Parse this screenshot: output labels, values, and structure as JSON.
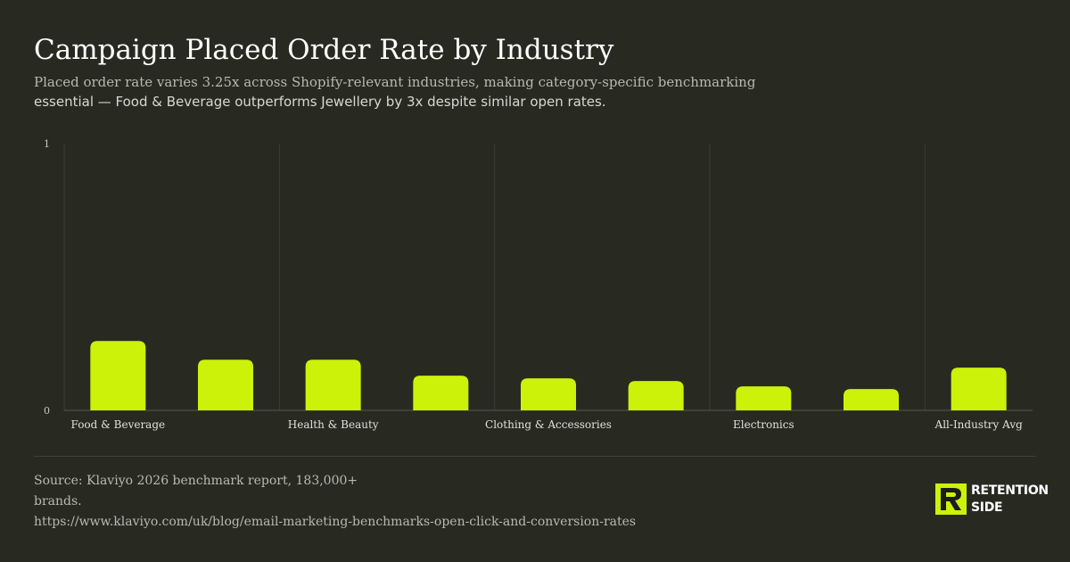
{
  "header": {
    "title": "Campaign Placed Order Rate by Industry",
    "subtitle_line1": "Placed order rate varies 3.25x across Shopify-relevant industries, making category-specific benchmarking",
    "subtitle_line2": "essential — Food & Beverage outperforms Jewellery by 3x despite similar open rates."
  },
  "chart_data": {
    "type": "bar",
    "categories": [
      "Food & Beverage",
      "",
      "Health & Beauty",
      "",
      "Clothing & Accessories",
      "",
      "Electronics",
      "",
      "All-Industry Avg"
    ],
    "values": [
      0.26,
      0.19,
      0.19,
      0.13,
      0.12,
      0.11,
      0.09,
      0.08,
      0.16
    ],
    "ylim": [
      0,
      1
    ],
    "yticks": [
      "0",
      "1"
    ],
    "grid": "vertical lines at alternate categories",
    "bar_color": "#ccf20a"
  },
  "footer": {
    "source_line1": "Source: Klaviyo 2026 benchmark report, 183,000+",
    "source_line2": "brands.",
    "source_line3": "https://www.klaviyo.com/uk/blog/email-marketing-benchmarks-open-click-and-conversion-rates"
  },
  "brand": {
    "logo_icon": "retention-side-logo-icon",
    "line1": "RETENTION",
    "line2": "SIDE",
    "accent": "#ccf20a"
  }
}
